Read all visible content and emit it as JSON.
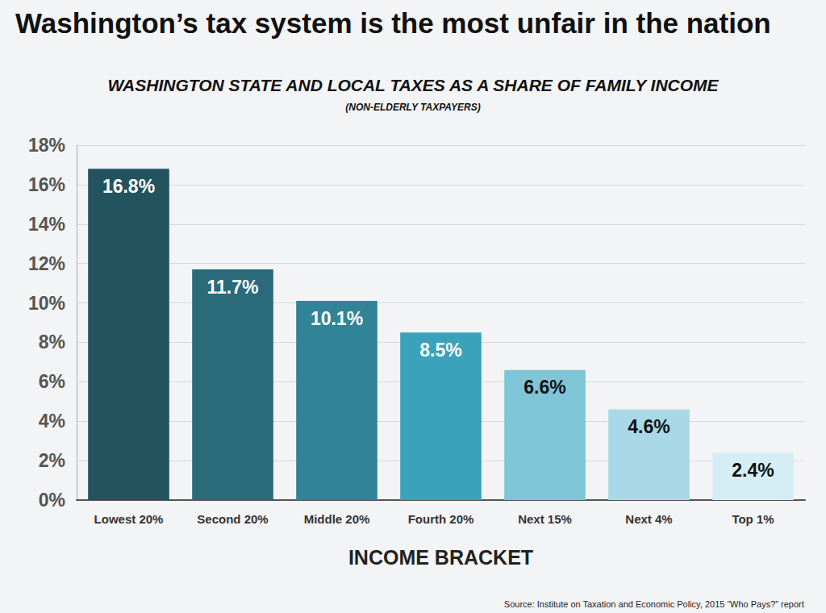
{
  "chart_data": {
    "type": "bar",
    "title": "Washington’s tax system is the most unfair in the nation",
    "subtitle": "WASHINGTON STATE AND LOCAL TAXES AS A SHARE OF FAMILY INCOME",
    "annotations": [
      "(NON-ELDERLY TAXPAYERS)",
      "Source: Institute on Taxation and Economic Policy, 2015 “Who Pays?” report"
    ],
    "x_label": "INCOME BRACKET",
    "categories": [
      "Lowest 20%",
      "Second 20%",
      "Middle 20%",
      "Fourth 20%",
      "Next 15%",
      "Next 4%",
      "Top 1%"
    ],
    "values": [
      16.8,
      11.7,
      10.1,
      8.5,
      6.6,
      4.6,
      2.4
    ],
    "value_labels": [
      "16.8%",
      "11.7%",
      "10.1%",
      "8.5%",
      "6.6%",
      "4.6%",
      "2.4%"
    ],
    "colors": [
      "#23535f",
      "#2b6a7b",
      "#318498",
      "#3aa2bb",
      "#7ec5d8",
      "#a9d9e7",
      "#d5eef5"
    ],
    "data_labels": true,
    "ylim": [
      0,
      18
    ],
    "yticks": [
      {
        "value": 0,
        "label": "0%"
      },
      {
        "value": 2,
        "label": "2%"
      },
      {
        "value": 4,
        "label": "4%"
      },
      {
        "value": 6,
        "label": "6%"
      },
      {
        "value": 8,
        "label": "8%"
      },
      {
        "value": 10,
        "label": "10%"
      },
      {
        "value": 12,
        "label": "12%"
      },
      {
        "value": 14,
        "label": "14%"
      },
      {
        "value": 16,
        "label": "16%"
      },
      {
        "value": 18,
        "label": "18%"
      }
    ],
    "grid": true
  }
}
